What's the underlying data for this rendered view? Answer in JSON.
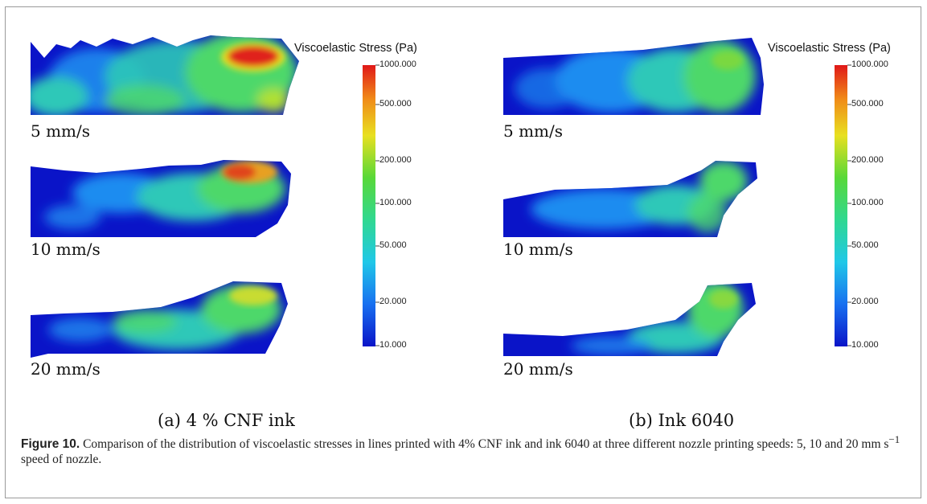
{
  "figure": {
    "panels": [
      {
        "id": "a",
        "subcaption": "(a) 4 % CNF ink",
        "speeds": [
          "5 mm/s",
          "10 mm/s",
          "20 mm/s"
        ],
        "colorbar": {
          "title": "Viscoelastic Stress (Pa)",
          "ticks": [
            "1000.000",
            "500.000",
            "200.000",
            "100.000",
            "50.000",
            "20.000",
            "10.000"
          ]
        }
      },
      {
        "id": "b",
        "subcaption": "(b) Ink 6040",
        "speeds": [
          "5 mm/s",
          "10 mm/s",
          "20 mm/s"
        ],
        "colorbar": {
          "title": "Viscoelastic Stress (Pa)",
          "ticks": [
            "1000.000",
            "500.000",
            "200.000",
            "100.000",
            "50.000",
            "20.000",
            "10.000"
          ]
        }
      }
    ],
    "caption": {
      "label": "Figure 10.",
      "text": "Comparison of the distribution of viscoelastic stresses in lines printed with 4% CNF ink and ink 6040 at three different nozzle printing speeds: 5, 10 and 20 mm s",
      "superscript": "−1",
      "tail": " speed of nozzle."
    },
    "colors": {
      "low": "#0a14c8",
      "mid_low": "#1e8cf0",
      "mid": "#2fc8b8",
      "mid_high": "#4ed86a",
      "high": "#e8e020",
      "max": "#e0241a"
    }
  }
}
